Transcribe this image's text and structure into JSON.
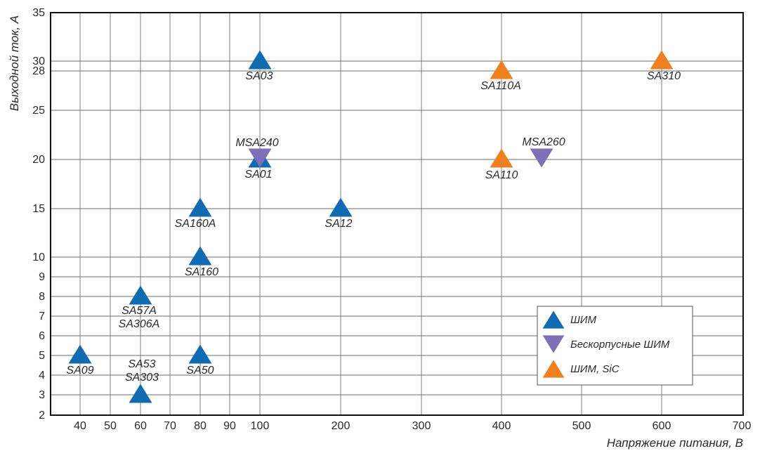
{
  "chart_data": {
    "type": "scatter",
    "title": "",
    "xlabel": "Напряжение питания, В",
    "ylabel": "Выходной ток, А",
    "x_scale": "piecewise-log-linear",
    "x_ticks": [
      40,
      50,
      60,
      70,
      80,
      90,
      100,
      200,
      300,
      400,
      500,
      600,
      700
    ],
    "y_scale": "piecewise-log-linear",
    "y_ticks": [
      2,
      3,
      4,
      5,
      6,
      7,
      8,
      9,
      10,
      15,
      20,
      25,
      28,
      30,
      35
    ],
    "xlim": [
      32,
      700
    ],
    "ylim": [
      2,
      35
    ],
    "grid": true,
    "legend_position": "bottom-right",
    "series": [
      {
        "name": "ШИМ",
        "marker": "triangle-up",
        "color": "#0f6cb3",
        "points": [
          {
            "label": "SA09",
            "x": 40,
            "y": 5
          },
          {
            "label": "SA57A SA306A",
            "x": 60,
            "y": 8
          },
          {
            "label": "SA53 SA303",
            "x": 60,
            "y": 3
          },
          {
            "label": "SA50",
            "x": 80,
            "y": 5
          },
          {
            "label": "SA160",
            "x": 80,
            "y": 10
          },
          {
            "label": "SA160A",
            "x": 80,
            "y": 15
          },
          {
            "label": "SA01",
            "x": 100,
            "y": 20
          },
          {
            "label": "SA03",
            "x": 100,
            "y": 30
          },
          {
            "label": "SA12",
            "x": 200,
            "y": 15
          }
        ]
      },
      {
        "name": "Бескорпусные ШИМ",
        "marker": "triangle-down",
        "color": "#7d6fb8",
        "points": [
          {
            "label": "MSA240",
            "x": 100,
            "y": 20
          },
          {
            "label": "MSA260",
            "x": 450,
            "y": 20
          }
        ]
      },
      {
        "name": "ШИМ, SiC",
        "marker": "triangle-up",
        "color": "#f0801e",
        "points": [
          {
            "label": "SA110",
            "x": 400,
            "y": 20
          },
          {
            "label": "SA110A",
            "x": 400,
            "y": 28
          },
          {
            "label": "SA310",
            "x": 600,
            "y": 30
          }
        ]
      }
    ]
  }
}
